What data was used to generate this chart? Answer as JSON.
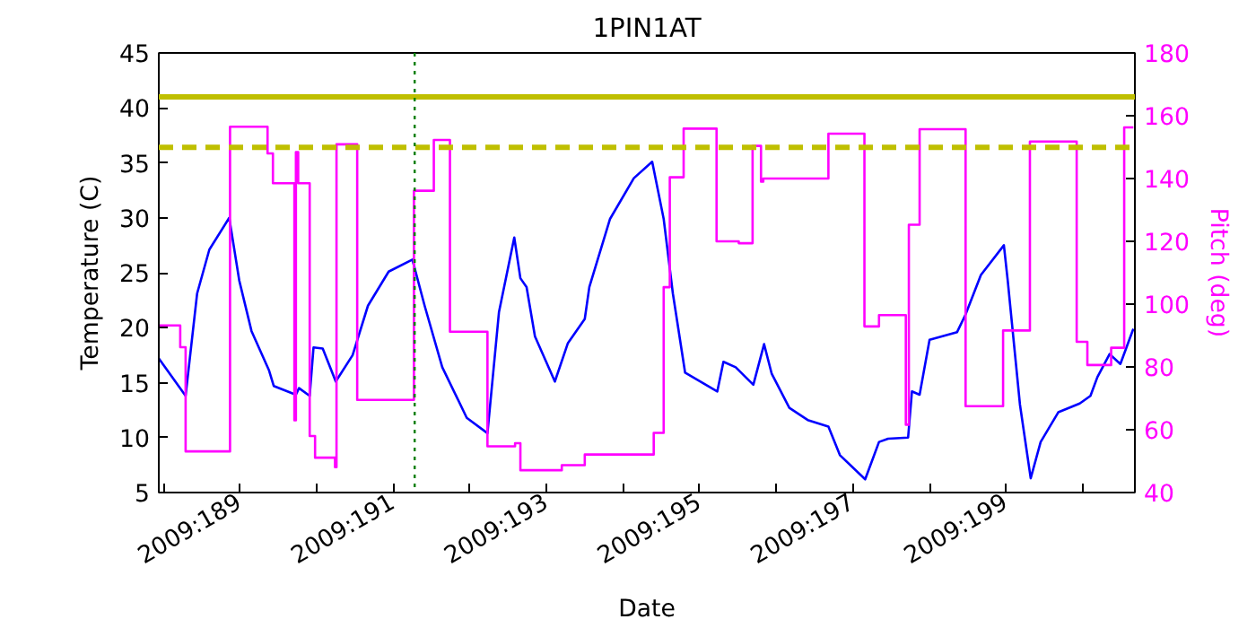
{
  "chart_data": {
    "type": "line",
    "title": "1PIN1AT",
    "xlabel": "Date",
    "ylabel": "Temperature (C)",
    "y2label": "Pitch (deg)",
    "xlim": [
      "2009-07-06T22:34",
      "2009-07-19T16:19"
    ],
    "xticks": [
      {
        "value": "2009-07-07",
        "label": null
      },
      {
        "value": "2009-07-08",
        "label": "2009:189"
      },
      {
        "value": "2009-07-09",
        "label": null
      },
      {
        "value": "2009-07-10",
        "label": "2009:191"
      },
      {
        "value": "2009-07-11",
        "label": null
      },
      {
        "value": "2009-07-12",
        "label": "2009:193"
      },
      {
        "value": "2009-07-13",
        "label": null
      },
      {
        "value": "2009-07-14",
        "label": "2009:195"
      },
      {
        "value": "2009-07-15",
        "label": null
      },
      {
        "value": "2009-07-16",
        "label": "2009:197"
      },
      {
        "value": "2009-07-17",
        "label": null
      },
      {
        "value": "2009-07-18",
        "label": "2009:199"
      },
      {
        "value": "2009-07-19",
        "label": null
      }
    ],
    "ylim": [
      5,
      45
    ],
    "yticks": [
      5,
      10,
      15,
      20,
      25,
      30,
      35,
      40,
      45
    ],
    "y2lim": [
      40,
      180
    ],
    "y2ticks": [
      40,
      60,
      80,
      100,
      120,
      140,
      160,
      180
    ],
    "series": [
      {
        "color": "#0000ff",
        "x": [
          "2009-07-06T22:34",
          "2009-07-07T06:58",
          "2009-07-07T10:34",
          "2009-07-07T14:24",
          "2009-07-07T20:38",
          "2009-07-07T23:46",
          "2009-07-08T03:36",
          "2009-07-08T09:07",
          "2009-07-08T10:34",
          "2009-07-08T17:31",
          "2009-07-08T18:29",
          "2009-07-08T21:50",
          "2009-07-08T23:02",
          "2009-07-09T01:55",
          "2009-07-09T06:00",
          "2009-07-09T11:17",
          "2009-07-09T16:05",
          "2009-07-09T22:34",
          "2009-07-10T06:00",
          "2009-07-10T09:50",
          "2009-07-10T15:22",
          "2009-07-10T23:02",
          "2009-07-11T05:31",
          "2009-07-11T09:07",
          "2009-07-11T13:55",
          "2009-07-11T15:50",
          "2009-07-11T17:46",
          "2009-07-11T20:24",
          "2009-07-12T02:38",
          "2009-07-12T06:43",
          "2009-07-12T12:00",
          "2009-07-12T13:26",
          "2009-07-12T19:55",
          "2009-07-13T03:22",
          "2009-07-13T09:07",
          "2009-07-13T12:43",
          "2009-07-13T15:36",
          "2009-07-13T19:26",
          "2009-07-14T05:31",
          "2009-07-14T07:26",
          "2009-07-14T11:17",
          "2009-07-14T16:48",
          "2009-07-14T20:10",
          "2009-07-14T22:34",
          "2009-07-15T04:05",
          "2009-07-15T09:50",
          "2009-07-15T16:19",
          "2009-07-15T19:55",
          "2009-07-16T03:50",
          "2009-07-16T08:10",
          "2009-07-16T11:02",
          "2009-07-16T17:17",
          "2009-07-16T18:29",
          "2009-07-16T20:53",
          "2009-07-17T00:00",
          "2009-07-17T08:38",
          "2009-07-17T11:17",
          "2009-07-17T16:05",
          "2009-07-17T23:17",
          "2009-07-18T00:29",
          "2009-07-18T04:19",
          "2009-07-18T07:41",
          "2009-07-18T10:48",
          "2009-07-18T16:19",
          "2009-07-18T23:02",
          "2009-07-19T02:24",
          "2009-07-19T04:34",
          "2009-07-19T08:24",
          "2009-07-19T11:46",
          "2009-07-19T15:50"
        ],
        "values": [
          17.2,
          13.8,
          23.1,
          27.1,
          30.0,
          24.3,
          19.7,
          16.1,
          14.7,
          13.9,
          14.5,
          13.8,
          18.2,
          18.1,
          15.1,
          17.5,
          22.0,
          25.1,
          26.2,
          22.0,
          16.4,
          11.8,
          10.4,
          21.4,
          28.2,
          24.5,
          23.7,
          19.2,
          15.1,
          18.6,
          20.8,
          23.7,
          29.9,
          33.6,
          35.1,
          29.9,
          23.1,
          15.9,
          14.2,
          16.9,
          16.4,
          14.8,
          18.5,
          15.8,
          12.7,
          11.6,
          11.0,
          8.4,
          6.2,
          9.6,
          9.9,
          10.0,
          14.2,
          13.9,
          18.9,
          19.6,
          21.2,
          24.8,
          27.5,
          24.3,
          13.0,
          6.3,
          9.6,
          12.3,
          13.1,
          13.8,
          15.5,
          17.6,
          16.7,
          19.9
        ]
      },
      {
        "type": "step",
        "axis": "y2",
        "color": "#ff00ff",
        "x": [
          "2009-07-06T22:34",
          "2009-07-07T05:17",
          "2009-07-07T06:58",
          "2009-07-07T20:53",
          "2009-07-08T08:38",
          "2009-07-08T10:19",
          "2009-07-08T17:02",
          "2009-07-08T17:31",
          "2009-07-08T18:14",
          "2009-07-08T21:50",
          "2009-07-08T23:31",
          "2009-07-09T05:46",
          "2009-07-09T06:14",
          "2009-07-09T12:43",
          "2009-07-10T06:29",
          "2009-07-10T12:43",
          "2009-07-10T17:46",
          "2009-07-11T05:31",
          "2009-07-11T14:10",
          "2009-07-11T15:50",
          "2009-07-12T04:48",
          "2009-07-12T12:00",
          "2009-07-13T09:36",
          "2009-07-13T12:43",
          "2009-07-13T14:38",
          "2009-07-13T18:58",
          "2009-07-14T05:17",
          "2009-07-14T12:14",
          "2009-07-14T16:34",
          "2009-07-14T19:12",
          "2009-07-14T19:55",
          "2009-07-15T16:19",
          "2009-07-16T03:36",
          "2009-07-16T08:10",
          "2009-07-16T16:34",
          "2009-07-16T17:31",
          "2009-07-16T20:53",
          "2009-07-17T11:17",
          "2009-07-17T23:02",
          "2009-07-18T07:26",
          "2009-07-18T22:05",
          "2009-07-19T01:26",
          "2009-07-19T08:53",
          "2009-07-19T12:58",
          "2009-07-19T15:50"
        ],
        "values": [
          93.2,
          86.3,
          53.1,
          156.5,
          148.0,
          138.5,
          63.0,
          148.4,
          138.5,
          58.0,
          51.1,
          48.1,
          150.9,
          69.5,
          136.1,
          152.3,
          91.2,
          54.7,
          55.7,
          47.1,
          48.7,
          52.1,
          59.0,
          105.4,
          140.4,
          155.9,
          120.0,
          119.4,
          150.4,
          139.0,
          140.0,
          154.3,
          92.9,
          96.5,
          61.6,
          125.3,
          155.7,
          67.5,
          91.6,
          151.8,
          88.0,
          80.6,
          86.1,
          156.3,
          156.3
        ]
      }
    ],
    "ref_lines": [
      {
        "axis": "y",
        "value": 41,
        "color": "#bfbf00",
        "line_style": "solid"
      },
      {
        "axis": "y",
        "value": 36.4,
        "color": "#bfbf00",
        "line_style": "dashed"
      },
      {
        "axis": "x",
        "value": "2009-07-10T06:43",
        "color": "#008000",
        "line_style": "dotted"
      }
    ],
    "grid": false
  }
}
